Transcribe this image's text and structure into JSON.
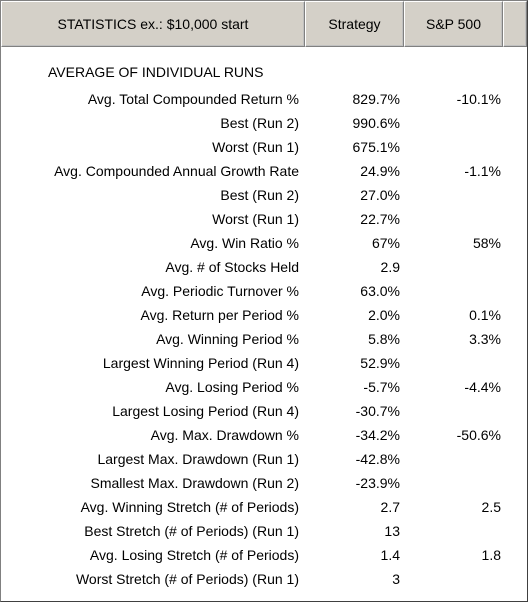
{
  "header": {
    "statistics_label": "STATISTICS  ex.: $10,000 start",
    "strategy_label": "Strategy",
    "sp500_label": "S&P 500"
  },
  "section_title": "AVERAGE OF INDIVIDUAL RUNS",
  "rows": [
    {
      "label": "Avg. Total Compounded Return %",
      "strategy": "829.7%",
      "sp500": "-10.1%"
    },
    {
      "label": "Best (Run  2)",
      "strategy": "990.6%",
      "sp500": ""
    },
    {
      "label": "Worst (Run  1)",
      "strategy": "675.1%",
      "sp500": ""
    },
    {
      "label": "Avg. Compounded Annual Growth Rate",
      "strategy": "24.9%",
      "sp500": "-1.1%"
    },
    {
      "label": "Best (Run  2)",
      "strategy": "27.0%",
      "sp500": ""
    },
    {
      "label": "Worst (Run  1)",
      "strategy": "22.7%",
      "sp500": ""
    },
    {
      "label": "Avg. Win Ratio %",
      "strategy": "67%",
      "sp500": "58%"
    },
    {
      "label": "Avg. # of Stocks Held",
      "strategy": "2.9",
      "sp500": ""
    },
    {
      "label": "Avg. Periodic Turnover %",
      "strategy": "63.0%",
      "sp500": ""
    },
    {
      "label": "Avg. Return per Period %",
      "strategy": "2.0%",
      "sp500": "0.1%"
    },
    {
      "label": "Avg. Winning Period %",
      "strategy": "5.8%",
      "sp500": "3.3%"
    },
    {
      "label": "Largest Winning Period (Run  4)",
      "strategy": "52.9%",
      "sp500": ""
    },
    {
      "label": "Avg. Losing Period %",
      "strategy": "-5.7%",
      "sp500": "-4.4%"
    },
    {
      "label": "Largest Losing Period (Run  4)",
      "strategy": "-30.7%",
      "sp500": ""
    },
    {
      "label": "Avg. Max. Drawdown %",
      "strategy": "-34.2%",
      "sp500": "-50.6%"
    },
    {
      "label": "Largest Max. Drawdown (Run  1)",
      "strategy": "-42.8%",
      "sp500": ""
    },
    {
      "label": "Smallest Max. Drawdown (Run  2)",
      "strategy": "-23.9%",
      "sp500": ""
    },
    {
      "label": "Avg. Winning Stretch (# of Periods)",
      "strategy": "2.7",
      "sp500": "2.5"
    },
    {
      "label": "Best Stretch (# of Periods) (Run  1)",
      "strategy": "13",
      "sp500": ""
    },
    {
      "label": "Avg. Losing Stretch (# of Periods)",
      "strategy": "1.4",
      "sp500": "1.8"
    },
    {
      "label": "Worst Stretch (# of Periods) (Run  1)",
      "strategy": "3",
      "sp500": ""
    }
  ]
}
